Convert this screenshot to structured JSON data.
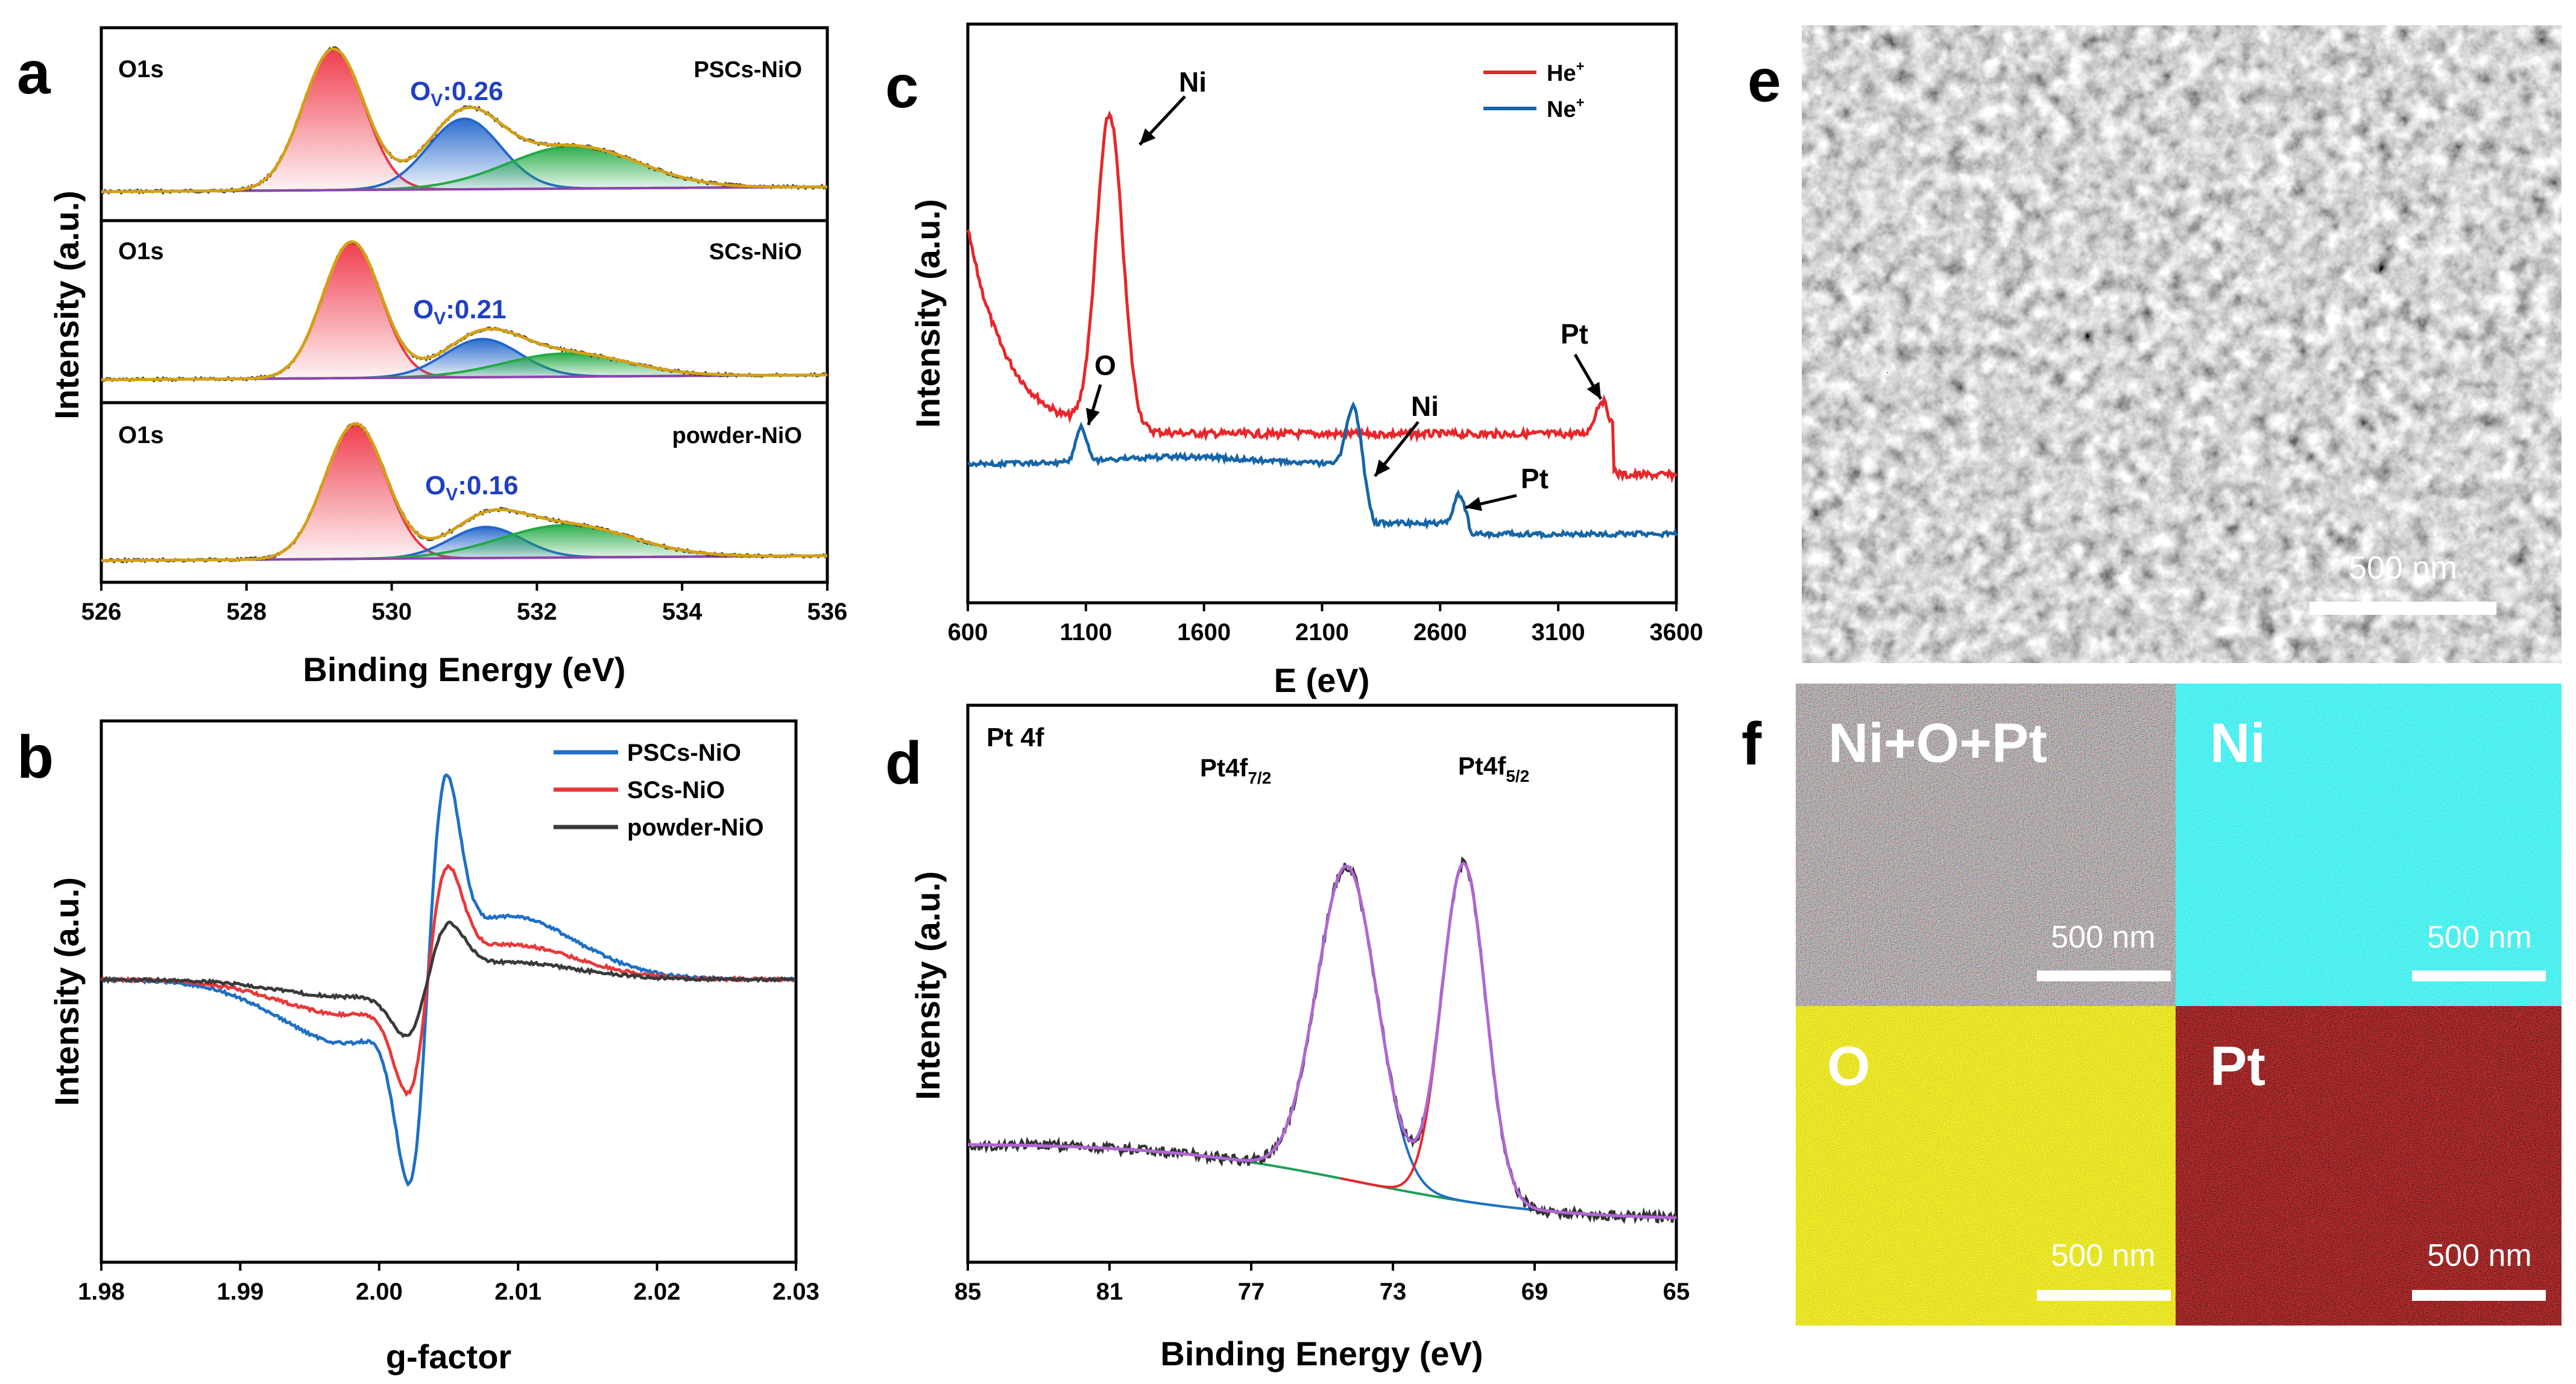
{
  "panel_labels": [
    "a",
    "b",
    "c",
    "d",
    "e",
    "f"
  ],
  "chart_data": [
    {
      "id": "a",
      "type": "line",
      "title": "",
      "xlabel": "Binding Energy (eV)",
      "ylabel": "Intensity (a.u.)",
      "xlim": [
        526,
        536
      ],
      "xticks": [
        526,
        528,
        530,
        532,
        534,
        536
      ],
      "subplots": [
        {
          "tag": "O1s",
          "name": "PSCs-NiO",
          "ov_label": "O",
          "ov_sub": "V",
          "ov_value": ":0.26",
          "peaks": [
            {
              "center": 529.2,
              "height": 1.0,
              "width": 0.42
            },
            {
              "center": 531.0,
              "height": 0.5,
              "width": 0.5
            },
            {
              "center": 532.5,
              "height": 0.3,
              "width": 0.9
            }
          ]
        },
        {
          "tag": "O1s",
          "name": "SCs-NiO",
          "ov_label": "O",
          "ov_sub": "V",
          "ov_value": ":0.21",
          "peaks": [
            {
              "center": 529.45,
              "height": 1.0,
              "width": 0.4
            },
            {
              "center": 531.25,
              "height": 0.28,
              "width": 0.52
            },
            {
              "center": 532.4,
              "height": 0.17,
              "width": 0.85
            }
          ]
        },
        {
          "tag": "O1s",
          "name": "powder-NiO",
          "ov_label": "O",
          "ov_sub": "V",
          "ov_value": ":0.16",
          "peaks": [
            {
              "center": 529.5,
              "height": 1.0,
              "width": 0.42
            },
            {
              "center": 531.3,
              "height": 0.23,
              "width": 0.5
            },
            {
              "center": 532.4,
              "height": 0.24,
              "width": 0.9
            }
          ]
        }
      ]
    },
    {
      "id": "b",
      "type": "line",
      "title": "",
      "xlabel": "g-factor",
      "ylabel": "Intensity (a.u.)",
      "xlim": [
        1.98,
        2.03
      ],
      "xticks": [
        "1.98",
        "1.99",
        "2.00",
        "2.01",
        "2.02",
        "2.03"
      ],
      "series": [
        {
          "name": "PSCs-NiO",
          "color": "#1f6fc6",
          "amplitude": 1.0
        },
        {
          "name": "SCs-NiO",
          "color": "#e8383b",
          "amplitude": 0.55
        },
        {
          "name": "powder-NiO",
          "color": "#3a3a3a",
          "amplitude": 0.27
        }
      ]
    },
    {
      "id": "c",
      "type": "line",
      "title": "",
      "xlabel": "E (eV)",
      "ylabel": "Intensity (a.u.)",
      "xlim": [
        600,
        3600
      ],
      "xticks": [
        600,
        1100,
        1600,
        2100,
        2600,
        3100,
        3600
      ],
      "series": [
        {
          "name": "He",
          "sup": "+",
          "color": "#e8262b"
        },
        {
          "name": "Ne",
          "sup": "+",
          "color": "#1565a8"
        }
      ],
      "annotations": [
        {
          "text": "Ni",
          "series": "He",
          "x": 1200
        },
        {
          "text": "Pt",
          "series": "He",
          "x": 3280
        },
        {
          "text": "O",
          "series": "Ne",
          "x": 1080
        },
        {
          "text": "Ni",
          "series": "Ne",
          "x": 2230
        },
        {
          "text": "Pt",
          "series": "Ne",
          "x": 2680
        }
      ]
    },
    {
      "id": "d",
      "type": "line",
      "title": "Pt 4f",
      "xlabel": "Binding Energy (eV)",
      "ylabel": "Intensity (a.u.)",
      "xlim": [
        85,
        65
      ],
      "xticks": [
        85,
        81,
        77,
        73,
        69,
        65
      ],
      "peaks": [
        {
          "label": "Pt4f",
          "sub": "7/2",
          "center": 74.3,
          "color": "#1f6fc6"
        },
        {
          "label": "Pt4f",
          "sub": "5/2",
          "center": 71.0,
          "color": "#e8262b"
        }
      ]
    }
  ],
  "images": [
    {
      "id": "e",
      "caption": "500 nm",
      "kind": "SEM micrograph"
    },
    {
      "id": "f",
      "tiles": [
        {
          "label": "Ni+O+Pt",
          "scale": "500 nm"
        },
        {
          "label": "Ni",
          "scale": "500 nm"
        },
        {
          "label": "O",
          "scale": "500 nm"
        },
        {
          "label": "Pt",
          "scale": "500 nm"
        }
      ]
    }
  ],
  "colors": {
    "envelope": "#d4a017",
    "raw": "#333333",
    "baseline": "#8e44ad",
    "peak1": "#ee3344",
    "peak2": "#2266cc",
    "peak3": "#22aa44",
    "eds_mix": "#4f6a4a",
    "eds_ni": "#1aa5a8",
    "eds_o": "#a79f12",
    "eds_pt": "#b8141a"
  }
}
